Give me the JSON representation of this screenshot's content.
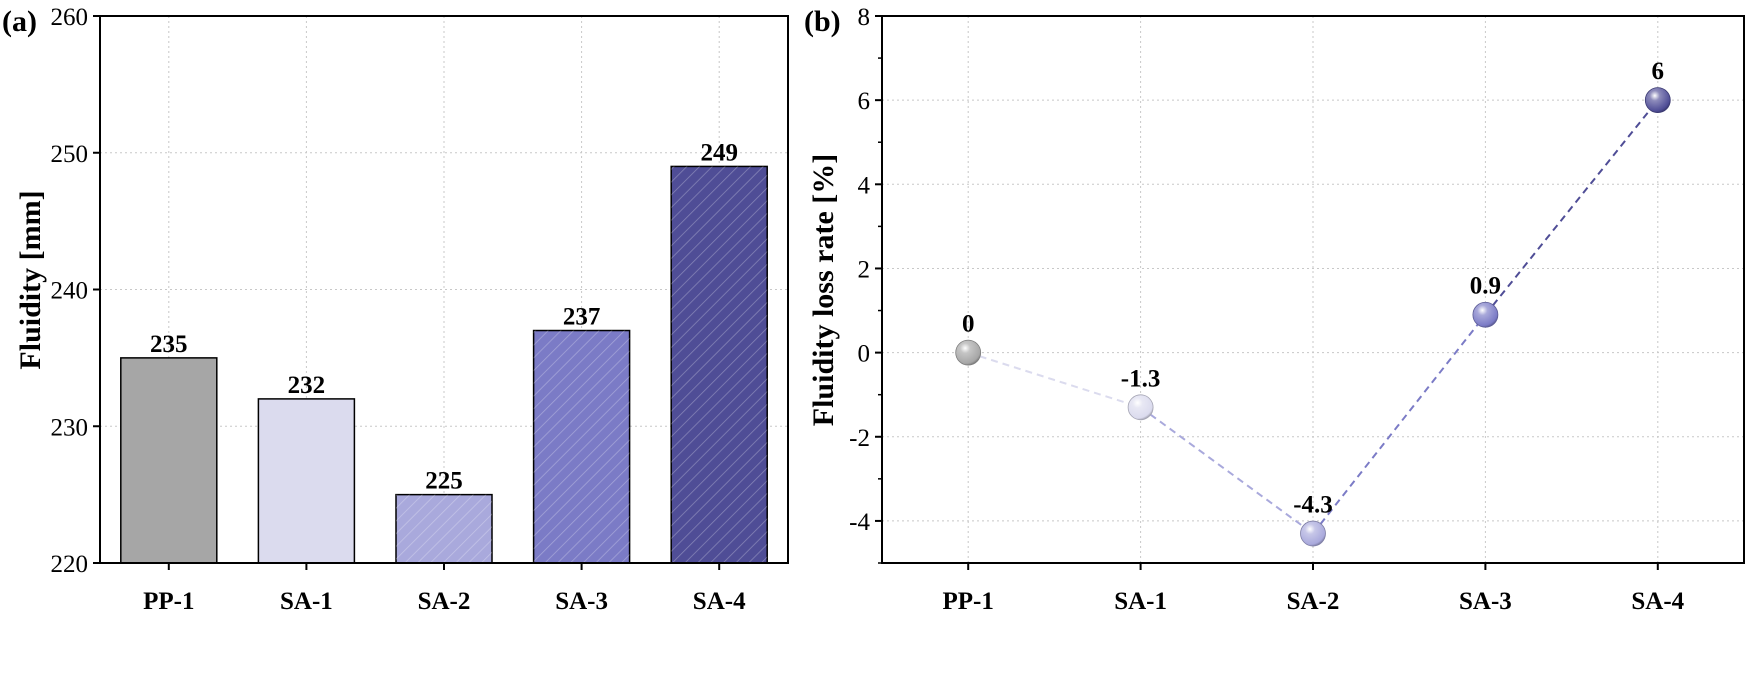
{
  "chart_data": [
    {
      "type": "bar",
      "panel_label": "(a)",
      "categories": [
        "PP-1",
        "SA-1",
        "SA-2",
        "SA-3",
        "SA-4"
      ],
      "values": [
        235,
        232,
        225,
        237,
        249
      ],
      "value_labels": [
        "235",
        "232",
        "225",
        "237",
        "249"
      ],
      "ylabel": "Fluidity [mm]",
      "xlabel": "",
      "ylim": [
        220,
        260
      ],
      "yticks": [
        220,
        230,
        240,
        250,
        260
      ],
      "ytick_labels": [
        "220",
        "230",
        "240",
        "250",
        "260"
      ],
      "grid": true,
      "colors": [
        "#a6a6a6",
        "#dbdbee",
        "#a9a9dc",
        "#7b7bc6",
        "#4f4d96"
      ],
      "hatch_on": [
        false,
        false,
        true,
        true,
        true
      ]
    },
    {
      "type": "line",
      "panel_label": "(b)",
      "categories": [
        "PP-1",
        "SA-1",
        "SA-2",
        "SA-3",
        "SA-4"
      ],
      "values": [
        0,
        -1.3,
        -4.3,
        0.9,
        6
      ],
      "value_labels": [
        "0",
        "-1.3",
        "-4.3",
        "0.9",
        "6"
      ],
      "ylabel": "Fluidity loss rate [%]",
      "xlabel": "",
      "ylim": [
        -5,
        8
      ],
      "yticks": [
        -4,
        -2,
        0,
        2,
        4,
        6,
        8
      ],
      "ytick_labels": [
        "-4",
        "-2",
        "0",
        "2",
        "4",
        "6",
        "8"
      ],
      "grid": true,
      "line_style": "dashed",
      "marker": "sphere",
      "colors": [
        "#a6a6a6",
        "#dbdbee",
        "#a9a9dc",
        "#7b7bc6",
        "#4f4d96"
      ]
    }
  ]
}
